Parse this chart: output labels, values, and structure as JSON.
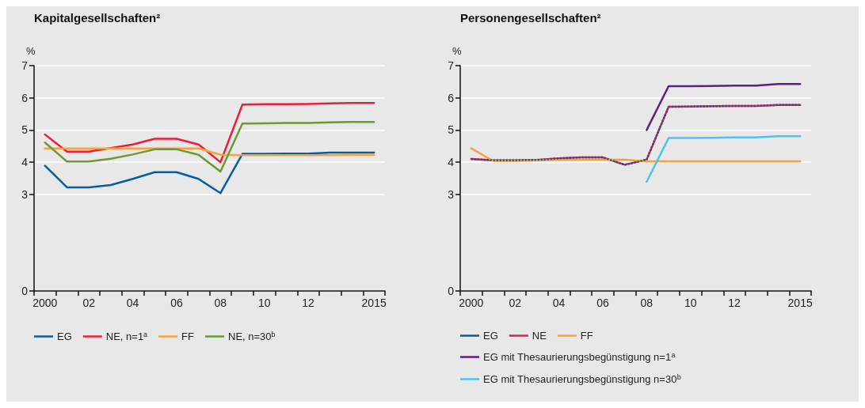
{
  "chart_data": [
    {
      "type": "line",
      "title": "Kapitalgesellschaften²",
      "ylabel": "%",
      "categories": [
        "2000",
        null,
        "02",
        null,
        "04",
        null,
        "06",
        null,
        "08",
        null,
        "10",
        null,
        "12",
        null,
        null,
        "2015"
      ],
      "series": [
        {
          "name": "EG",
          "color": "#0a5c9e",
          "values": [
            3.89,
            3.22,
            3.22,
            3.29,
            3.48,
            3.69,
            3.69,
            3.48,
            3.04,
            4.26,
            4.26,
            4.27,
            4.27,
            4.3,
            4.3,
            4.3
          ]
        },
        {
          "name": "NE, n=1$^{a}$",
          "color": "#ee1c3a",
          "values": [
            4.86,
            4.33,
            4.33,
            4.44,
            4.55,
            4.73,
            4.73,
            4.55,
            4.0,
            5.79,
            5.8,
            5.8,
            5.81,
            5.83,
            5.84,
            5.84
          ]
        },
        {
          "name": "FF",
          "color": "#f7a13a",
          "values": [
            4.43,
            4.43,
            4.43,
            4.43,
            4.43,
            4.43,
            4.43,
            4.43,
            4.23,
            4.22,
            4.22,
            4.22,
            4.22,
            4.22,
            4.23,
            4.23
          ]
        },
        {
          "name": "NE, n=30$^{b}$",
          "color": "#6b9a35",
          "values": [
            4.61,
            4.02,
            4.02,
            4.11,
            4.24,
            4.4,
            4.4,
            4.23,
            3.71,
            5.2,
            5.21,
            5.22,
            5.22,
            5.24,
            5.25,
            5.25
          ]
        }
      ],
      "ylim": [
        0,
        7
      ],
      "yticks": [
        0,
        3,
        4,
        5,
        6,
        7
      ],
      "grid": "y",
      "legend": "bottom"
    },
    {
      "type": "line",
      "title": "Personengesellschaften²",
      "ylabel": "%",
      "categories": [
        "2000",
        null,
        "02",
        null,
        "04",
        null,
        "06",
        null,
        "08",
        null,
        "10",
        null,
        "12",
        null,
        null,
        "2015"
      ],
      "series": [
        {
          "name": "EG",
          "color": "#0a5c9e",
          "line_style": "dotted",
          "values": [
            4.1,
            4.06,
            4.06,
            4.07,
            4.12,
            4.15,
            4.15,
            3.92,
            4.08,
            5.72,
            5.73,
            5.74,
            5.75,
            5.75,
            5.78,
            5.78
          ]
        },
        {
          "name": "NE",
          "color": "#ee1c3a",
          "values": [
            4.1,
            4.06,
            4.06,
            4.07,
            4.12,
            4.15,
            4.15,
            3.92,
            4.08,
            5.72,
            5.73,
            5.74,
            5.75,
            5.75,
            5.78,
            5.78
          ]
        },
        {
          "name": "FF",
          "color": "#f7a13a",
          "values": [
            4.43,
            4.04,
            4.04,
            4.05,
            4.07,
            4.08,
            4.08,
            4.08,
            4.03,
            4.03,
            4.03,
            4.03,
            4.03,
            4.03,
            4.03,
            4.03
          ]
        },
        {
          "name": "EG mit Thesaurierungsbegünstigung n=1$^{a}$",
          "color": "#5e1f80",
          "values": [
            null,
            null,
            null,
            null,
            null,
            null,
            null,
            null,
            5.0,
            6.36,
            6.36,
            6.37,
            6.38,
            6.38,
            6.43,
            6.43
          ]
        },
        {
          "name": "EG mit Thesaurierungsbegünstigung n=30$^{b}$",
          "color": "#4fc3ee",
          "values": [
            null,
            null,
            null,
            null,
            null,
            null,
            null,
            null,
            3.39,
            4.75,
            4.75,
            4.76,
            4.77,
            4.77,
            4.81,
            4.81
          ]
        }
      ],
      "ylim": [
        0,
        7
      ],
      "yticks": [
        0,
        3,
        4,
        5,
        6,
        7
      ],
      "grid": "y",
      "legend": "bottom"
    }
  ]
}
